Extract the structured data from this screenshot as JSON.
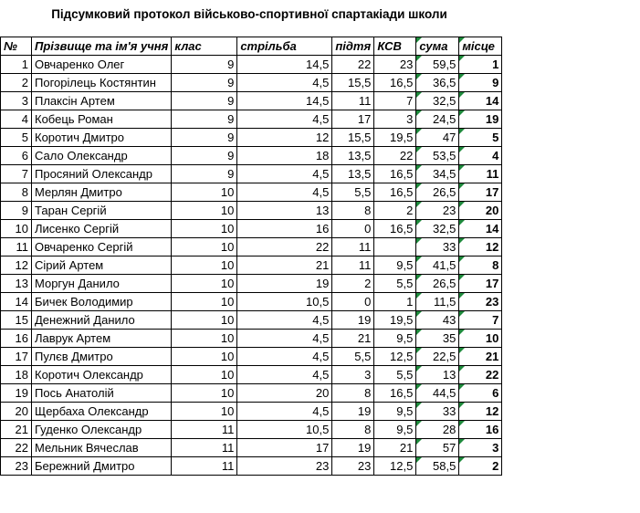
{
  "title": "Підсумковий протокол військово-спортивної спартакіади школи",
  "table": {
    "header": [
      "№",
      "Прізвище та ім'я учня",
      "клас",
      "стрільба",
      "підтя",
      "КСВ",
      "сума",
      "місце"
    ],
    "rows": [
      [
        "1",
        "Овчаренко Олег",
        "9",
        "14,5",
        "22",
        "23",
        "59,5",
        "1"
      ],
      [
        "2",
        "Погорілець Костянтин",
        "9",
        "4,5",
        "15,5",
        "16,5",
        "36,5",
        "9"
      ],
      [
        "3",
        "Плаксін Артем",
        "9",
        "14,5",
        "11",
        "7",
        "32,5",
        "14"
      ],
      [
        "4",
        "Кобець Роман",
        "9",
        "4,5",
        "17",
        "3",
        "24,5",
        "19"
      ],
      [
        "5",
        "Коротич Дмитро",
        "9",
        "12",
        "15,5",
        "19,5",
        "47",
        "5"
      ],
      [
        "6",
        "Сало Олександр",
        "9",
        "18",
        "13,5",
        "22",
        "53,5",
        "4"
      ],
      [
        "7",
        "Просяний Олександр",
        "9",
        "4,5",
        "13,5",
        "16,5",
        "34,5",
        "11"
      ],
      [
        "8",
        "Мерлян Дмитро",
        "10",
        "4,5",
        "5,5",
        "16,5",
        "26,5",
        "17"
      ],
      [
        "9",
        "Таран Сергій",
        "10",
        "13",
        "8",
        "2",
        "23",
        "20"
      ],
      [
        "10",
        "Лисенко Сергій",
        "10",
        "16",
        "0",
        "16,5",
        "32,5",
        "14"
      ],
      [
        "11",
        "Овчаренко Сергій",
        "10",
        "22",
        "11",
        null,
        "33",
        "12"
      ],
      [
        "12",
        "Сірий Артем",
        "10",
        "21",
        "11",
        "9,5",
        "41,5",
        "8"
      ],
      [
        "13",
        "Моргун Данило",
        "10",
        "19",
        "2",
        "5,5",
        "26,5",
        "17"
      ],
      [
        "14",
        "Бичек Володимир",
        "10",
        "10,5",
        "0",
        "1",
        "11,5",
        "23"
      ],
      [
        "15",
        "Денежний Данило",
        "10",
        "4,5",
        "19",
        "19,5",
        "43",
        "7"
      ],
      [
        "16",
        "Лаврук Артем",
        "10",
        "4,5",
        "21",
        "9,5",
        "35",
        "10"
      ],
      [
        "17",
        "Пулєв Дмитро",
        "10",
        "4,5",
        "5,5",
        "12,5",
        "22,5",
        "21"
      ],
      [
        "18",
        "Коротич Олександр",
        "10",
        "4,5",
        "3",
        "5,5",
        "13",
        "22"
      ],
      [
        "19",
        "Пось Анатолій",
        "10",
        "20",
        "8",
        "16,5",
        "44,5",
        "6"
      ],
      [
        "20",
        "Щербаха Олександр",
        "10",
        "4,5",
        "19",
        "9,5",
        "33",
        "12"
      ],
      [
        "21",
        "Гуденко Олександр",
        "11",
        "10,5",
        "8",
        "9,5",
        "28",
        "16"
      ],
      [
        "22",
        "Мельник Вячеслав",
        "11",
        "17",
        "19",
        "21",
        "57",
        "3"
      ],
      [
        "23",
        "Бережний Дмитро",
        "11",
        "23",
        "23",
        "12,5",
        "58,5",
        "2"
      ]
    ]
  }
}
